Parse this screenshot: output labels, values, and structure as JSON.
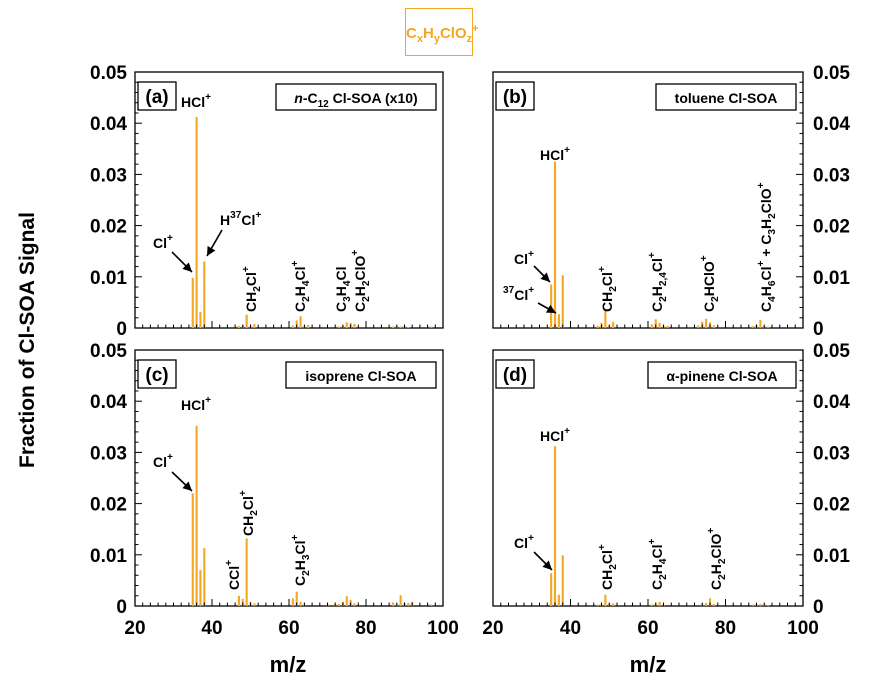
{
  "legend": {
    "main": "C",
    "x": "x",
    "h": "H",
    "y": "y",
    "clo": "ClO",
    "z": "z",
    "plus": "+",
    "color": "#f5a623"
  },
  "ylabel": "Fraction of Cl-SOA Signal",
  "xlabel": "m/z",
  "chart_data": [
    {
      "type": "bar",
      "panel": "(a)",
      "box_label": [
        "",
        "n",
        "-C",
        "12",
        " Cl-SOA (x10)"
      ],
      "xlim": [
        20,
        100
      ],
      "ylim": [
        0,
        0.05
      ],
      "xticks": [
        "20",
        "40",
        "60",
        "80",
        "100"
      ],
      "yticks": [
        "0",
        "0.01",
        "0.02",
        "0.03",
        "0.04",
        "0.05"
      ],
      "x": [
        35,
        36,
        37,
        38,
        47,
        48,
        49,
        50,
        51,
        61,
        62,
        63,
        64,
        65,
        73,
        74,
        75,
        76,
        77,
        87,
        88,
        89,
        90,
        91,
        97
      ],
      "values": [
        0.0098,
        0.0412,
        0.0031,
        0.013,
        0.0004,
        0.0005,
        0.0026,
        0.0004,
        0.0008,
        0.0005,
        0.0015,
        0.0023,
        0.0004,
        0.0006,
        0.0003,
        0.0004,
        0.0011,
        0.001,
        0.0008,
        0.0003,
        0.0004,
        0.0003,
        0.0004,
        0.0002,
        0.0003
      ],
      "annotations": [
        "HCl+",
        "Cl+",
        "H37Cl+",
        "CH2Cl+",
        "C2H4Cl+",
        "C3H4Cl+",
        "C2H2ClO+"
      ]
    },
    {
      "type": "bar",
      "panel": "(b)",
      "box_label": [
        "toluene Cl-SOA"
      ],
      "xlim": [
        20,
        100
      ],
      "ylim": [
        0,
        0.05
      ],
      "xticks": [
        "20",
        "40",
        "60",
        "80",
        "100"
      ],
      "yticks": [
        "0",
        "0.01",
        "0.02",
        "0.03",
        "0.04",
        "0.05"
      ],
      "x": [
        35,
        36,
        37,
        38,
        47,
        48,
        49,
        50,
        51,
        61,
        62,
        63,
        64,
        65,
        73,
        74,
        75,
        76,
        77,
        87,
        88,
        89,
        90,
        91
      ],
      "values": [
        0.0085,
        0.0325,
        0.0027,
        0.0103,
        0.0004,
        0.001,
        0.0035,
        0.0004,
        0.0012,
        0.0007,
        0.0017,
        0.001,
        0.0005,
        0.0004,
        0.0005,
        0.0012,
        0.0018,
        0.0011,
        0.0005,
        0.0004,
        0.0006,
        0.0016,
        0.0004,
        0.0003
      ],
      "annotations": [
        "HCl+",
        "Cl+",
        "37Cl+",
        "CH2Cl+",
        "C2H2,4Cl+",
        "C2HClO+",
        "C4H6Cl+ + C3H2ClO+"
      ]
    },
    {
      "type": "bar",
      "panel": "(c)",
      "box_label": [
        "isoprene Cl-SOA"
      ],
      "xlim": [
        20,
        100
      ],
      "ylim": [
        0,
        0.05
      ],
      "xticks": [
        "20",
        "40",
        "60",
        "80",
        "100"
      ],
      "yticks": [
        "0",
        "0.01",
        "0.02",
        "0.03",
        "0.04",
        "0.05"
      ],
      "x": [
        35,
        36,
        37,
        38,
        47,
        48,
        49,
        50,
        51,
        61,
        62,
        63,
        64,
        70,
        72,
        73,
        74,
        75,
        76,
        77,
        87,
        88,
        89,
        90,
        91,
        92,
        97
      ],
      "values": [
        0.022,
        0.0352,
        0.007,
        0.0113,
        0.002,
        0.0014,
        0.0132,
        0.0008,
        0.0005,
        0.0015,
        0.0028,
        0.0008,
        0.0004,
        0.0003,
        0.0004,
        0.0004,
        0.0008,
        0.0019,
        0.0012,
        0.0005,
        0.0007,
        0.0004,
        0.0021,
        0.0006,
        0.0006,
        0.0008,
        0.0003
      ],
      "annotations": [
        "HCl+",
        "Cl+",
        "CCl+",
        "CH2Cl+",
        "C2H3Cl+"
      ]
    },
    {
      "type": "bar",
      "panel": "(d)",
      "box_label": [
        "α-pinene Cl-SOA"
      ],
      "xlim": [
        20,
        100
      ],
      "ylim": [
        0,
        0.05
      ],
      "xticks": [
        "20",
        "40",
        "60",
        "80",
        "100"
      ],
      "yticks": [
        "0",
        "0.01",
        "0.02",
        "0.03",
        "0.04",
        "0.05"
      ],
      "x": [
        35,
        36,
        37,
        38,
        47,
        48,
        49,
        50,
        51,
        61,
        62,
        63,
        64,
        74,
        75,
        76,
        77,
        87,
        88,
        89,
        90,
        91
      ],
      "values": [
        0.0064,
        0.0312,
        0.0022,
        0.0099,
        0.0003,
        0.0004,
        0.0022,
        0.0004,
        0.0005,
        0.0003,
        0.0005,
        0.0008,
        0.0003,
        0.0004,
        0.0006,
        0.0015,
        0.0004,
        0.0003,
        0.0004,
        0.0004,
        0.0003,
        0.0002
      ],
      "annotations": [
        "HCl+",
        "Cl+",
        "CH2Cl+",
        "C2H4Cl+",
        "C2H2ClO+"
      ]
    }
  ]
}
